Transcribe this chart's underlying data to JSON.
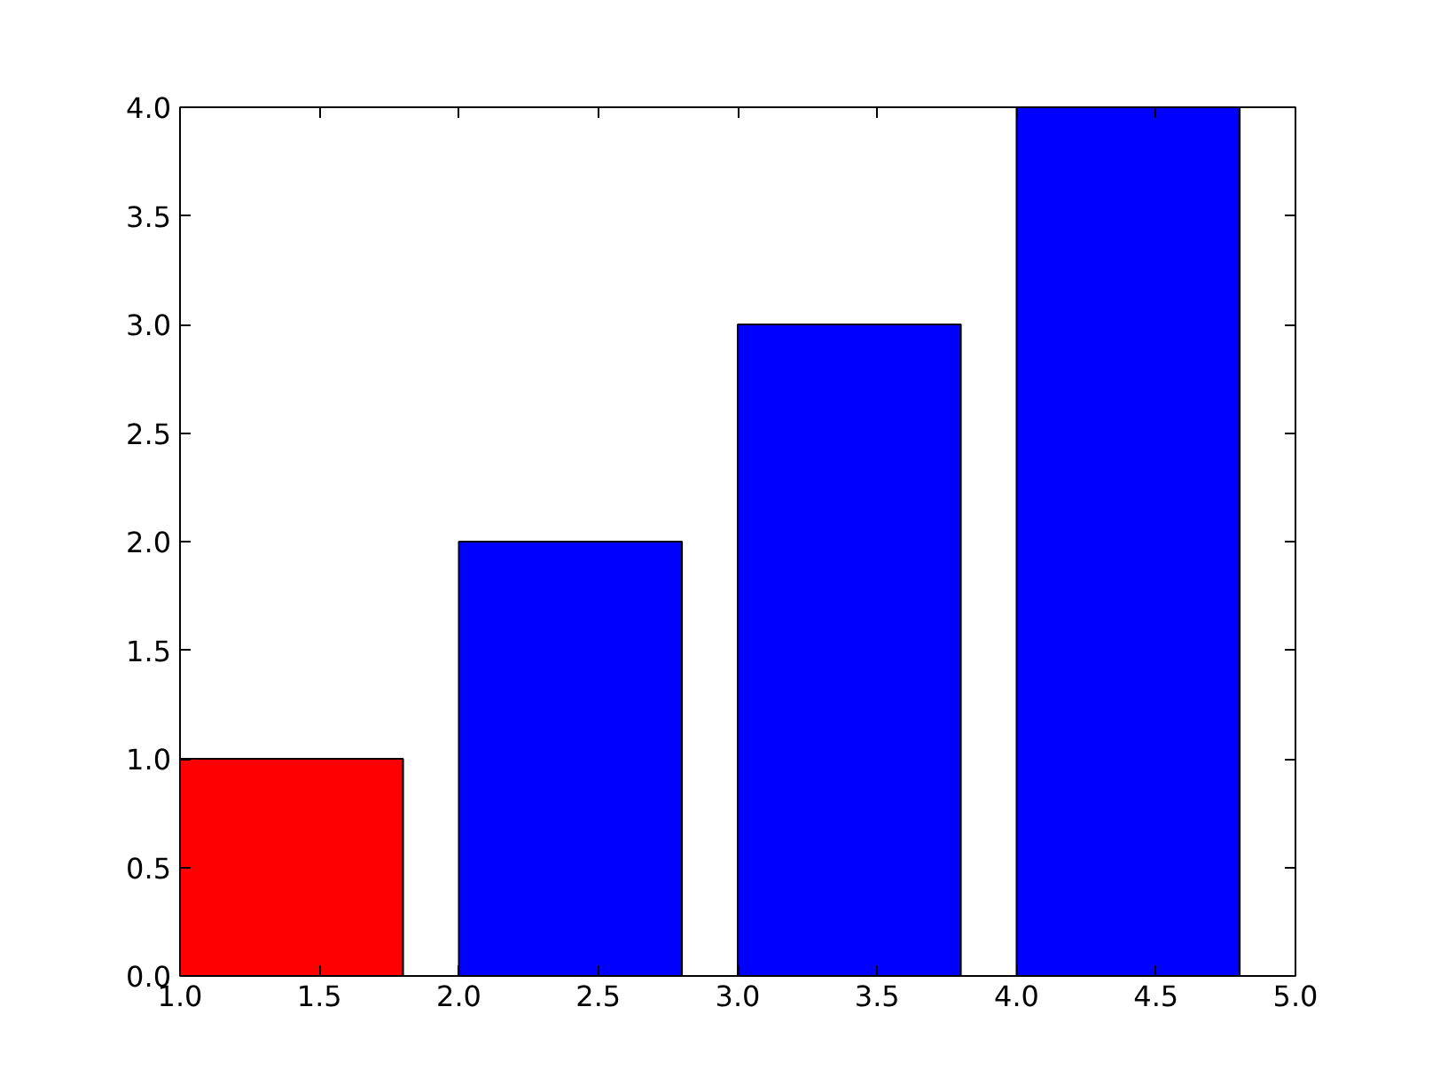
{
  "chart_data": {
    "type": "bar",
    "x": [
      1.4,
      2.4,
      3.4,
      4.4
    ],
    "values": [
      1,
      2,
      3,
      4
    ],
    "colors": [
      "#ff0000",
      "#0000ff",
      "#0000ff",
      "#0000ff"
    ],
    "xlim": [
      1.0,
      5.0
    ],
    "xticks": [
      {
        "value": 1.0,
        "label": "1.0"
      },
      {
        "value": 1.5,
        "label": "1.5"
      },
      {
        "value": 2.0,
        "label": "2.0"
      },
      {
        "value": 2.5,
        "label": "2.5"
      },
      {
        "value": 3.0,
        "label": "3.0"
      },
      {
        "value": 3.5,
        "label": "3.5"
      },
      {
        "value": 4.0,
        "label": "4.0"
      },
      {
        "value": 4.5,
        "label": "4.5"
      },
      {
        "value": 5.0,
        "label": "5.0"
      }
    ],
    "ylim": [
      0.0,
      4.0
    ],
    "yticks": [
      {
        "value": 0.0,
        "label": "0.0"
      },
      {
        "value": 0.5,
        "label": "0.5"
      },
      {
        "value": 1.0,
        "label": "1.0"
      },
      {
        "value": 1.5,
        "label": "1.5"
      },
      {
        "value": 2.0,
        "label": "2.0"
      },
      {
        "value": 2.5,
        "label": "2.5"
      },
      {
        "value": 3.0,
        "label": "3.0"
      },
      {
        "value": 3.5,
        "label": "3.5"
      },
      {
        "value": 4.0,
        "label": "4.0"
      }
    ],
    "grid": false
  }
}
